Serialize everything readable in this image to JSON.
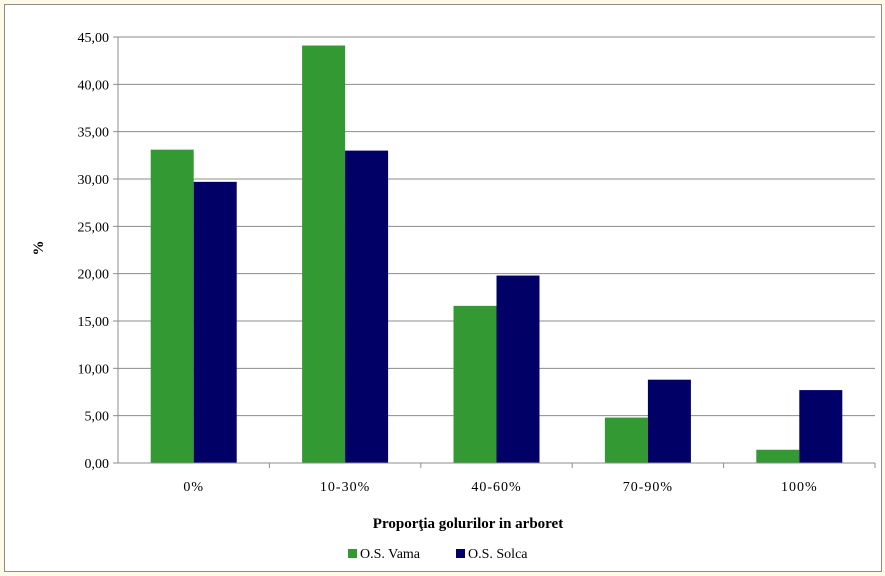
{
  "chart_data": {
    "type": "bar",
    "title": "",
    "xlabel": "Proporţia golurilor in arboret",
    "ylabel": "%",
    "categories": [
      "0%",
      "10-30%",
      "40-60%",
      "70-90%",
      "100%"
    ],
    "series": [
      {
        "name": "O.S. Vama",
        "color": "#339933",
        "values": [
          33.1,
          44.1,
          16.6,
          4.8,
          1.4
        ]
      },
      {
        "name": "O.S. Solca",
        "color": "#000066",
        "values": [
          29.7,
          33.0,
          19.8,
          8.8,
          7.7
        ]
      }
    ],
    "ylim": [
      0,
      45
    ],
    "yticks": [
      "0,00",
      "5,00",
      "10,00",
      "15,00",
      "20,00",
      "25,00",
      "30,00",
      "35,00",
      "40,00",
      "45,00"
    ],
    "ytick_values": [
      0,
      5,
      10,
      15,
      20,
      25,
      30,
      35,
      40,
      45
    ],
    "grid": true,
    "legend_position": "bottom"
  }
}
